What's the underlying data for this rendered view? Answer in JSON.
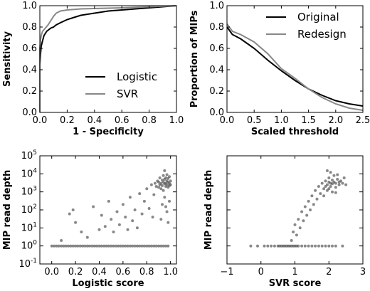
{
  "chart_data": [
    {
      "id": "roc",
      "type": "line",
      "xlabel": "1 - Specificity",
      "ylabel": "Sensitivity",
      "xlim": [
        0,
        1
      ],
      "ylim": [
        0,
        1
      ],
      "xticks": [
        "0.0",
        "0.2",
        "0.4",
        "0.6",
        "0.8",
        "1.0"
      ],
      "yticks": [
        "0.0",
        "0.2",
        "0.4",
        "0.6",
        "0.8",
        "1.0"
      ],
      "grid": false,
      "legend": "bottom-right",
      "series": [
        {
          "name": "Logistic",
          "color": "#000000",
          "points": [
            [
              0,
              0
            ],
            [
              0,
              0.45
            ],
            [
              0.005,
              0.55
            ],
            [
              0.01,
              0.62
            ],
            [
              0.02,
              0.67
            ],
            [
              0.03,
              0.72
            ],
            [
              0.05,
              0.76
            ],
            [
              0.08,
              0.79
            ],
            [
              0.1,
              0.8
            ],
            [
              0.12,
              0.82
            ],
            [
              0.15,
              0.84
            ],
            [
              0.2,
              0.87
            ],
            [
              0.25,
              0.89
            ],
            [
              0.3,
              0.91
            ],
            [
              0.4,
              0.93
            ],
            [
              0.5,
              0.95
            ],
            [
              0.6,
              0.96
            ],
            [
              0.7,
              0.97
            ],
            [
              0.8,
              0.98
            ],
            [
              0.9,
              0.99
            ],
            [
              1.0,
              1.0
            ]
          ]
        },
        {
          "name": "SVR",
          "color": "#888888",
          "points": [
            [
              0,
              0
            ],
            [
              0,
              0.6
            ],
            [
              0.005,
              0.68
            ],
            [
              0.01,
              0.72
            ],
            [
              0.02,
              0.76
            ],
            [
              0.04,
              0.79
            ],
            [
              0.06,
              0.82
            ],
            [
              0.08,
              0.86
            ],
            [
              0.1,
              0.9
            ],
            [
              0.12,
              0.93
            ],
            [
              0.15,
              0.95
            ],
            [
              0.2,
              0.96
            ],
            [
              0.3,
              0.97
            ],
            [
              0.45,
              0.975
            ],
            [
              0.6,
              0.98
            ],
            [
              0.8,
              0.99
            ],
            [
              1.0,
              1.0
            ]
          ]
        }
      ]
    },
    {
      "id": "threshold",
      "type": "line",
      "xlabel": "Scaled threshold",
      "ylabel": "Proportion of MIPs",
      "xlim": [
        0,
        2.5
      ],
      "ylim": [
        0,
        1
      ],
      "xticks": [
        "0.0",
        "0.5",
        "1.0",
        "1.5",
        "2.0",
        "2.5"
      ],
      "yticks": [
        "0.0",
        "0.2",
        "0.4",
        "0.6",
        "0.8",
        "1.0"
      ],
      "grid": false,
      "legend": "top-right",
      "series": [
        {
          "name": "Original",
          "color": "#000000",
          "points": [
            [
              0,
              0.8
            ],
            [
              0.1,
              0.73
            ],
            [
              0.25,
              0.69
            ],
            [
              0.5,
              0.6
            ],
            [
              0.75,
              0.49
            ],
            [
              1.0,
              0.39
            ],
            [
              1.25,
              0.3
            ],
            [
              1.5,
              0.22
            ],
            [
              1.75,
              0.16
            ],
            [
              2.0,
              0.11
            ],
            [
              2.25,
              0.08
            ],
            [
              2.5,
              0.06
            ]
          ]
        },
        {
          "name": "Redesign",
          "color": "#888888",
          "points": [
            [
              0,
              0.83
            ],
            [
              0.1,
              0.76
            ],
            [
              0.25,
              0.73
            ],
            [
              0.5,
              0.66
            ],
            [
              0.75,
              0.55
            ],
            [
              1.0,
              0.41
            ],
            [
              1.25,
              0.32
            ],
            [
              1.5,
              0.22
            ],
            [
              1.75,
              0.14
            ],
            [
              2.0,
              0.08
            ],
            [
              2.25,
              0.04
            ],
            [
              2.5,
              0.02
            ]
          ]
        }
      ]
    },
    {
      "id": "logistic-scatter",
      "type": "scatter",
      "xlabel": "Logistic score",
      "ylabel": "MIP read depth",
      "xlim": [
        -0.1,
        1.05
      ],
      "ylim_log10": [
        -1,
        5
      ],
      "log_y": true,
      "xticks": [
        "0.0",
        "0.2",
        "0.4",
        "0.6",
        "0.8",
        "1.0"
      ],
      "ytick_exponents": [
        "-1",
        "0",
        "1",
        "2",
        "3",
        "4",
        "5"
      ],
      "ytick_base": "10",
      "color": "#555555",
      "points": [
        [
          0.0,
          1
        ],
        [
          0.02,
          1
        ],
        [
          0.04,
          1
        ],
        [
          0.06,
          1
        ],
        [
          0.08,
          1
        ],
        [
          0.1,
          1
        ],
        [
          0.12,
          1
        ],
        [
          0.14,
          1
        ],
        [
          0.16,
          1
        ],
        [
          0.18,
          1
        ],
        [
          0.2,
          1
        ],
        [
          0.22,
          1
        ],
        [
          0.24,
          1
        ],
        [
          0.26,
          1
        ],
        [
          0.28,
          1
        ],
        [
          0.3,
          1
        ],
        [
          0.32,
          1
        ],
        [
          0.34,
          1
        ],
        [
          0.36,
          1
        ],
        [
          0.38,
          1
        ],
        [
          0.4,
          1
        ],
        [
          0.42,
          1
        ],
        [
          0.44,
          1
        ],
        [
          0.46,
          1
        ],
        [
          0.48,
          1
        ],
        [
          0.5,
          1
        ],
        [
          0.52,
          1
        ],
        [
          0.54,
          1
        ],
        [
          0.56,
          1
        ],
        [
          0.58,
          1
        ],
        [
          0.6,
          1
        ],
        [
          0.62,
          1
        ],
        [
          0.64,
          1
        ],
        [
          0.66,
          1
        ],
        [
          0.68,
          1
        ],
        [
          0.7,
          1
        ],
        [
          0.72,
          1
        ],
        [
          0.74,
          1
        ],
        [
          0.76,
          1
        ],
        [
          0.78,
          1
        ],
        [
          0.8,
          1
        ],
        [
          0.82,
          1
        ],
        [
          0.84,
          1
        ],
        [
          0.86,
          1
        ],
        [
          0.88,
          1
        ],
        [
          0.9,
          1
        ],
        [
          0.92,
          1
        ],
        [
          0.94,
          1
        ],
        [
          0.96,
          1
        ],
        [
          0.98,
          1
        ],
        [
          0.08,
          2
        ],
        [
          0.15,
          60
        ],
        [
          0.18,
          100
        ],
        [
          0.2,
          20
        ],
        [
          0.25,
          6
        ],
        [
          0.3,
          3
        ],
        [
          0.35,
          150
        ],
        [
          0.4,
          8
        ],
        [
          0.42,
          50
        ],
        [
          0.45,
          12
        ],
        [
          0.48,
          300
        ],
        [
          0.5,
          30
        ],
        [
          0.52,
          6
        ],
        [
          0.55,
          80
        ],
        [
          0.57,
          15
        ],
        [
          0.6,
          200
        ],
        [
          0.62,
          40
        ],
        [
          0.64,
          8
        ],
        [
          0.66,
          500
        ],
        [
          0.68,
          25
        ],
        [
          0.7,
          100
        ],
        [
          0.72,
          10
        ],
        [
          0.74,
          800
        ],
        [
          0.76,
          60
        ],
        [
          0.78,
          300
        ],
        [
          0.8,
          1500
        ],
        [
          0.82,
          120
        ],
        [
          0.84,
          2500
        ],
        [
          0.85,
          40
        ],
        [
          0.86,
          700
        ],
        [
          0.87,
          3000
        ],
        [
          0.88,
          2000
        ],
        [
          0.89,
          4000
        ],
        [
          0.9,
          1800
        ],
        [
          0.9,
          3500
        ],
        [
          0.91,
          2500
        ],
        [
          0.91,
          6000
        ],
        [
          0.92,
          3000
        ],
        [
          0.92,
          1500
        ],
        [
          0.93,
          4500
        ],
        [
          0.93,
          2200
        ],
        [
          0.94,
          3500
        ],
        [
          0.94,
          8000
        ],
        [
          0.94,
          1200
        ],
        [
          0.95,
          2800
        ],
        [
          0.95,
          5000
        ],
        [
          0.95,
          15000
        ],
        [
          0.96,
          3000
        ],
        [
          0.96,
          2000
        ],
        [
          0.96,
          6000
        ],
        [
          0.97,
          4000
        ],
        [
          0.97,
          2500
        ],
        [
          0.97,
          9000
        ],
        [
          0.98,
          3500
        ],
        [
          0.98,
          1800
        ],
        [
          0.98,
          5500
        ],
        [
          0.99,
          3000
        ],
        [
          0.99,
          7000
        ],
        [
          0.99,
          2200
        ],
        [
          1.0,
          4000
        ],
        [
          1.0,
          2500
        ],
        [
          0.93,
          200
        ],
        [
          0.95,
          500
        ],
        [
          0.97,
          80
        ],
        [
          0.98,
          20
        ],
        [
          0.99,
          300
        ],
        [
          0.92,
          30
        ],
        [
          0.96,
          150
        ]
      ]
    },
    {
      "id": "svr-scatter",
      "type": "scatter",
      "xlabel": "SVR score",
      "ylabel": "MIP read depth",
      "xlim": [
        -1,
        3
      ],
      "ylim_log10": [
        -1,
        5
      ],
      "log_y": true,
      "xticks": [
        "−1",
        "0",
        "1",
        "2",
        "3"
      ],
      "color": "#555555",
      "points": [
        [
          -0.3,
          1
        ],
        [
          -0.1,
          1
        ],
        [
          0.1,
          1
        ],
        [
          0.2,
          1
        ],
        [
          0.3,
          1
        ],
        [
          0.4,
          1
        ],
        [
          0.5,
          1
        ],
        [
          0.55,
          1
        ],
        [
          0.6,
          1
        ],
        [
          0.65,
          1
        ],
        [
          0.7,
          1
        ],
        [
          0.75,
          1
        ],
        [
          0.8,
          1
        ],
        [
          0.85,
          1
        ],
        [
          0.9,
          1
        ],
        [
          0.95,
          1
        ],
        [
          1.0,
          1
        ],
        [
          1.05,
          1
        ],
        [
          1.1,
          1
        ],
        [
          1.2,
          1
        ],
        [
          1.3,
          1
        ],
        [
          1.4,
          1
        ],
        [
          1.5,
          1
        ],
        [
          1.6,
          1
        ],
        [
          1.7,
          1
        ],
        [
          1.8,
          1
        ],
        [
          1.9,
          1
        ],
        [
          2.0,
          1
        ],
        [
          2.1,
          1
        ],
        [
          2.2,
          1
        ],
        [
          2.4,
          1
        ],
        [
          0.9,
          2
        ],
        [
          0.95,
          6
        ],
        [
          1.0,
          15
        ],
        [
          1.05,
          4
        ],
        [
          1.1,
          30
        ],
        [
          1.15,
          10
        ],
        [
          1.2,
          80
        ],
        [
          1.25,
          25
        ],
        [
          1.3,
          150
        ],
        [
          1.35,
          50
        ],
        [
          1.4,
          300
        ],
        [
          1.45,
          100
        ],
        [
          1.5,
          600
        ],
        [
          1.55,
          200
        ],
        [
          1.6,
          1200
        ],
        [
          1.65,
          400
        ],
        [
          1.7,
          2000
        ],
        [
          1.75,
          800
        ],
        [
          1.8,
          3000
        ],
        [
          1.85,
          1500
        ],
        [
          1.9,
          4000
        ],
        [
          1.95,
          2500
        ],
        [
          2.0,
          3500
        ],
        [
          2.0,
          6000
        ],
        [
          2.05,
          3000
        ],
        [
          2.05,
          2000
        ],
        [
          2.1,
          4500
        ],
        [
          2.1,
          2800
        ],
        [
          2.15,
          3500
        ],
        [
          2.15,
          8000
        ],
        [
          2.2,
          3000
        ],
        [
          2.2,
          1800
        ],
        [
          2.25,
          5000
        ],
        [
          2.3,
          3500
        ],
        [
          2.3,
          2500
        ],
        [
          2.35,
          4000
        ],
        [
          2.4,
          3000
        ],
        [
          2.45,
          6000
        ],
        [
          2.5,
          2500
        ],
        [
          1.9,
          2000
        ],
        [
          1.95,
          1200
        ],
        [
          2.0,
          1500
        ],
        [
          2.1,
          1000
        ],
        [
          2.2,
          900
        ],
        [
          1.85,
          600
        ],
        [
          1.95,
          15000
        ],
        [
          2.05,
          12000
        ],
        [
          2.25,
          9000
        ]
      ]
    }
  ]
}
